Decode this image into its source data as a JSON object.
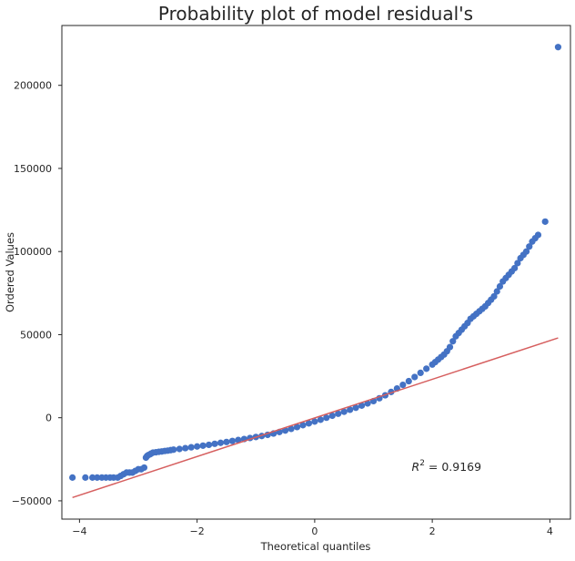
{
  "chart_data": {
    "type": "scatter",
    "title": "Probability plot of model residual's",
    "xlabel": "Theoretical quantiles",
    "ylabel": "Ordered Values",
    "xlim": [
      -4.3,
      4.35
    ],
    "ylim": [
      -61000,
      236000
    ],
    "xticks": [
      -4,
      -2,
      0,
      2,
      4
    ],
    "xtick_labels": [
      "−4",
      "−2",
      "0",
      "2",
      "4"
    ],
    "yticks": [
      -50000,
      0,
      50000,
      100000,
      150000,
      200000
    ],
    "ytick_labels": [
      "−50000",
      "0",
      "50000",
      "100000",
      "150000",
      "200000"
    ],
    "grid": false,
    "annotation": {
      "text_prefix": "R",
      "text_sup": "2",
      "text_suffix": " = 0.9169",
      "x": 1.65,
      "y": -32000
    },
    "colors": {
      "points": "#4472c4",
      "fit_line": "#d65f5f",
      "axes": "#262626"
    },
    "series": [
      {
        "name": "Ordered Values",
        "kind": "points",
        "x": [
          -4.12,
          -3.9,
          -3.78,
          -3.7,
          -3.62,
          -3.55,
          -3.48,
          -3.42,
          -3.35,
          -3.3,
          -3.25,
          -3.2,
          -3.15,
          -3.1,
          -3.05,
          -3.0,
          -2.95,
          -2.9,
          -2.87,
          -2.85,
          -2.83,
          -2.8,
          -2.78,
          -2.75,
          -2.7,
          -2.65,
          -2.6,
          -2.55,
          -2.5,
          -2.45,
          -2.4,
          -2.3,
          -2.2,
          -2.1,
          -2.0,
          -1.9,
          -1.8,
          -1.7,
          -1.6,
          -1.5,
          -1.4,
          -1.3,
          -1.2,
          -1.1,
          -1.0,
          -0.9,
          -0.8,
          -0.7,
          -0.6,
          -0.5,
          -0.4,
          -0.3,
          -0.2,
          -0.1,
          0.0,
          0.1,
          0.2,
          0.3,
          0.4,
          0.5,
          0.6,
          0.7,
          0.8,
          0.9,
          1.0,
          1.1,
          1.2,
          1.3,
          1.4,
          1.5,
          1.6,
          1.7,
          1.8,
          1.9,
          2.0,
          2.05,
          2.1,
          2.15,
          2.2,
          2.25,
          2.3,
          2.35,
          2.4,
          2.45,
          2.5,
          2.55,
          2.6,
          2.65,
          2.7,
          2.75,
          2.8,
          2.85,
          2.9,
          2.95,
          3.0,
          3.05,
          3.1,
          3.15,
          3.2,
          3.25,
          3.3,
          3.35,
          3.4,
          3.45,
          3.5,
          3.55,
          3.6,
          3.65,
          3.7,
          3.75,
          3.8,
          3.92,
          4.14
        ],
        "y": [
          -36000,
          -36000,
          -36000,
          -36000,
          -36000,
          -36000,
          -36000,
          -36000,
          -36000,
          -35000,
          -34000,
          -33000,
          -33000,
          -33000,
          -32000,
          -31000,
          -31000,
          -30000,
          -24000,
          -23000,
          -22500,
          -22000,
          -21500,
          -21000,
          -20800,
          -20500,
          -20300,
          -20000,
          -19800,
          -19500,
          -19200,
          -18800,
          -18300,
          -17800,
          -17300,
          -16800,
          -16300,
          -15700,
          -15100,
          -14600,
          -14000,
          -13400,
          -12800,
          -12200,
          -11600,
          -11000,
          -10300,
          -9500,
          -8600,
          -7700,
          -6700,
          -5600,
          -4500,
          -3400,
          -2300,
          -1200,
          0,
          1200,
          2400,
          3600,
          4800,
          6000,
          7300,
          8600,
          10000,
          11700,
          13500,
          15500,
          17600,
          19800,
          22000,
          24500,
          27000,
          29500,
          32000,
          33500,
          35000,
          36500,
          38000,
          40000,
          42500,
          46000,
          49000,
          51000,
          53000,
          55000,
          57000,
          59500,
          61000,
          62500,
          64000,
          65500,
          67000,
          69000,
          71000,
          73000,
          76000,
          79000,
          82000,
          84000,
          86000,
          88000,
          90000,
          93000,
          96000,
          98000,
          100000,
          103000,
          106000,
          108000,
          110000,
          118000,
          223000
        ]
      },
      {
        "name": "Fit line",
        "kind": "line",
        "x": [
          -4.12,
          4.14
        ],
        "y": [
          -48000,
          48000
        ]
      }
    ]
  }
}
